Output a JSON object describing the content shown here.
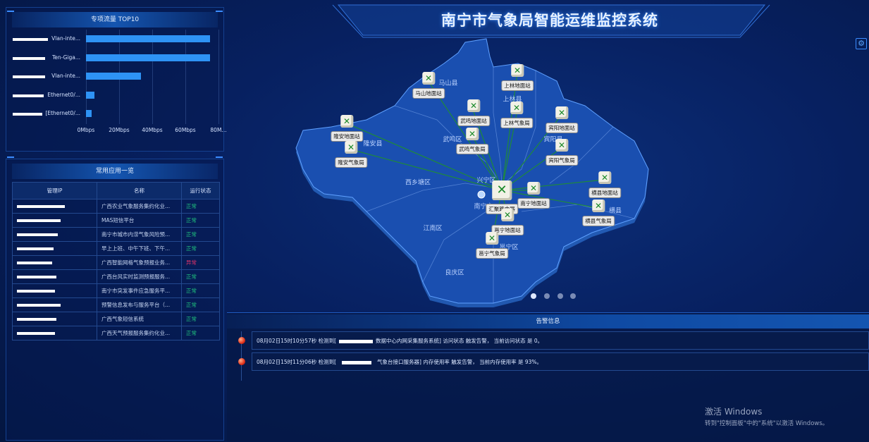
{
  "header": {
    "title": "南宁市气象局智能运维监控系统",
    "settings_icon": "gear-icon"
  },
  "traffic": {
    "title": "专项流量 TOP10",
    "chart_data": {
      "type": "bar",
      "orientation": "horizontal",
      "categories": [
        "Vlan-inte...",
        "Ten-Giga...",
        "Vlan-inte...",
        "Ethernet0/...",
        "[Ethernet0/..."
      ],
      "values": [
        75,
        75,
        33,
        5,
        3.5
      ],
      "xticks": [
        "0Mbps",
        "20Mbps",
        "40Mbps",
        "60Mbps",
        "80M..."
      ],
      "xlim": [
        0,
        80
      ],
      "unit": "Mbps",
      "grid": true,
      "bar_color": "#2e93f5"
    }
  },
  "apps": {
    "title": "常用应用一览",
    "columns": [
      "管理IP",
      "名称",
      "运行状态"
    ],
    "rows": [
      {
        "name": "广西农业气象服务集约化业...",
        "status": "正常"
      },
      {
        "name": "MAS短信平台",
        "status": "正常"
      },
      {
        "name": "南宁市城市内涝气象风险预...",
        "status": "正常"
      },
      {
        "name": "早上上班、中午下班、下午...",
        "status": "正常"
      },
      {
        "name": "广西智能网格气象预报业务...",
        "status": "异常"
      },
      {
        "name": "广西台风实时监测预报服务...",
        "status": "正常"
      },
      {
        "name": "南宁市突发事件应急服务平...",
        "status": "正常"
      },
      {
        "name": "预警信息发布与服务平台（...",
        "status": "正常"
      },
      {
        "name": "广西气象短信系统",
        "status": "正常"
      },
      {
        "name": "广西天气预报服务集约化业...",
        "status": "正常"
      }
    ],
    "status_colors": {
      "正常": "#1fc27d",
      "异常": "#e0336a"
    }
  },
  "map": {
    "districts": [
      "马山县",
      "上林县",
      "武鸣区",
      "宾阳县",
      "隆安县",
      "西乡塘区",
      "兴宁区",
      "南宁市",
      "江南区",
      "邕宁区",
      "良庆区",
      "横县"
    ],
    "nodes": [
      {
        "label": "马山地面站"
      },
      {
        "label": "上林地面站"
      },
      {
        "label": "武鸣地面站"
      },
      {
        "label": "上林气象局"
      },
      {
        "label": "宾阳地面站"
      },
      {
        "label": "隆安地面站"
      },
      {
        "label": "武鸣气象局"
      },
      {
        "label": "宾阳气象局"
      },
      {
        "label": "隆安气象局"
      },
      {
        "label": "横县地面站"
      },
      {
        "label": "横县气象局"
      },
      {
        "label": "汇聚路由器"
      },
      {
        "label": "南宁地面站"
      },
      {
        "label": "邕宁地面站"
      },
      {
        "label": "邕宁气象局"
      }
    ],
    "pager": {
      "pages": 4,
      "active": 1
    }
  },
  "alerts": {
    "title": "告警信息",
    "items": [
      {
        "time": "08月02日15时10分57秒 检测到[",
        "text": "数据中心内网采集服务系统] 访问状态 触发告警， 当前访问状态 是 0。"
      },
      {
        "time": "08月02日15时11分06秒 检测到[",
        "text": "气象台接口服务器] 内存使用率 触发告警， 当前内存使用率 是 93%。"
      }
    ]
  },
  "watermark": {
    "line1": "激活 Windows",
    "line2": "转到\"控制面板\"中的\"系统\"以激活 Windows。"
  }
}
